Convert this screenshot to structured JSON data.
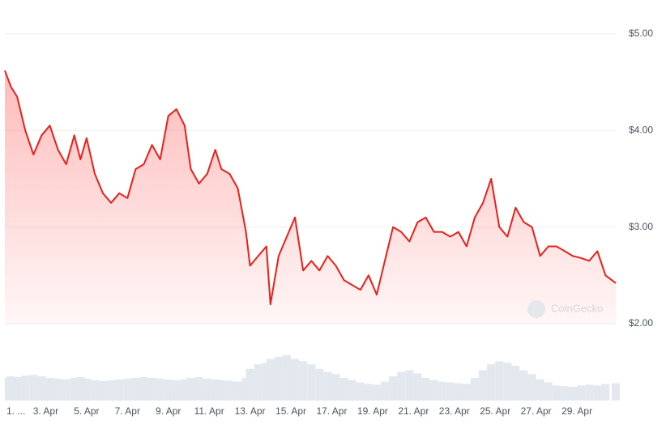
{
  "chart_data": {
    "type": "line",
    "watermark": "CoinGecko",
    "x": [
      1.0,
      1.3,
      1.6,
      2.0,
      2.4,
      2.8,
      3.2,
      3.6,
      4.0,
      4.4,
      4.7,
      5.0,
      5.4,
      5.8,
      6.2,
      6.6,
      7.0,
      7.4,
      7.8,
      8.2,
      8.6,
      9.0,
      9.4,
      9.8,
      10.1,
      10.5,
      10.9,
      11.3,
      11.6,
      12.0,
      12.4,
      12.8,
      13.0,
      13.4,
      13.8,
      14.0,
      14.4,
      14.8,
      15.2,
      15.6,
      16.0,
      16.4,
      16.8,
      17.2,
      17.6,
      18.0,
      18.4,
      18.8,
      19.2,
      19.6,
      20.0,
      20.4,
      20.8,
      21.2,
      21.6,
      22.0,
      22.4,
      22.8,
      23.2,
      23.6,
      24.0,
      24.4,
      24.8,
      25.2,
      25.6,
      26.0,
      26.4,
      26.8,
      27.2,
      27.6,
      28.0,
      28.4,
      28.8,
      29.2,
      29.6,
      30.0,
      30.4,
      30.9
    ],
    "series": [
      {
        "color": "#e8211c",
        "values": [
          4.62,
          4.45,
          4.35,
          4.0,
          3.75,
          3.95,
          4.05,
          3.8,
          3.65,
          3.95,
          3.7,
          3.92,
          3.55,
          3.35,
          3.25,
          3.35,
          3.3,
          3.6,
          3.65,
          3.85,
          3.7,
          4.15,
          4.22,
          4.05,
          3.6,
          3.45,
          3.55,
          3.8,
          3.6,
          3.55,
          3.4,
          2.95,
          2.6,
          2.7,
          2.8,
          2.2,
          2.7,
          2.9,
          3.1,
          2.55,
          2.65,
          2.55,
          2.7,
          2.6,
          2.45,
          2.4,
          2.35,
          2.5,
          2.3,
          2.65,
          3.0,
          2.95,
          2.85,
          3.05,
          3.1,
          2.95,
          2.95,
          2.9,
          2.95,
          2.8,
          3.1,
          3.25,
          3.5,
          3.0,
          2.9,
          3.2,
          3.05,
          3.0,
          2.7,
          2.8,
          2.8,
          2.75,
          2.7,
          2.68,
          2.65,
          2.75,
          2.5,
          2.42
        ]
      }
    ],
    "volume": [
      30,
      32,
      31,
      33,
      34,
      32,
      30,
      29,
      28,
      30,
      31,
      29,
      27,
      26,
      27,
      28,
      29,
      30,
      31,
      30,
      29,
      28,
      27,
      28,
      30,
      31,
      29,
      28,
      27,
      26,
      25,
      30,
      42,
      48,
      50,
      55,
      58,
      60,
      55,
      52,
      48,
      42,
      38,
      35,
      30,
      27,
      24,
      22,
      21,
      25,
      32,
      38,
      40,
      36,
      30,
      27,
      25,
      24,
      23,
      22,
      30,
      40,
      48,
      52,
      50,
      46,
      40,
      35,
      28,
      24,
      20,
      19,
      18,
      20,
      21,
      20,
      22,
      23
    ],
    "xlim": [
      1,
      30.9
    ],
    "xticks": [
      {
        "value": 1,
        "label": "1. ..."
      },
      {
        "value": 3,
        "label": "3. Apr"
      },
      {
        "value": 5,
        "label": "5. Apr"
      },
      {
        "value": 7,
        "label": "7. Apr"
      },
      {
        "value": 9,
        "label": "9. Apr"
      },
      {
        "value": 11,
        "label": "11. Apr"
      },
      {
        "value": 13,
        "label": "13. Apr"
      },
      {
        "value": 15,
        "label": "15. Apr"
      },
      {
        "value": 17,
        "label": "17. Apr"
      },
      {
        "value": 19,
        "label": "19. Apr"
      },
      {
        "value": 21,
        "label": "21. Apr"
      },
      {
        "value": 23,
        "label": "23. Apr"
      },
      {
        "value": 25,
        "label": "25. Apr"
      },
      {
        "value": 27,
        "label": "27. Apr"
      },
      {
        "value": 29,
        "label": "29. Apr"
      }
    ],
    "ylim": [
      2,
      5.35
    ],
    "yticks": [
      {
        "value": 2,
        "label": "$2.00"
      },
      {
        "value": 3,
        "label": "$3.00"
      },
      {
        "value": 4,
        "label": "$4.00"
      },
      {
        "value": 5,
        "label": "$5.00"
      }
    ],
    "grid": true
  }
}
